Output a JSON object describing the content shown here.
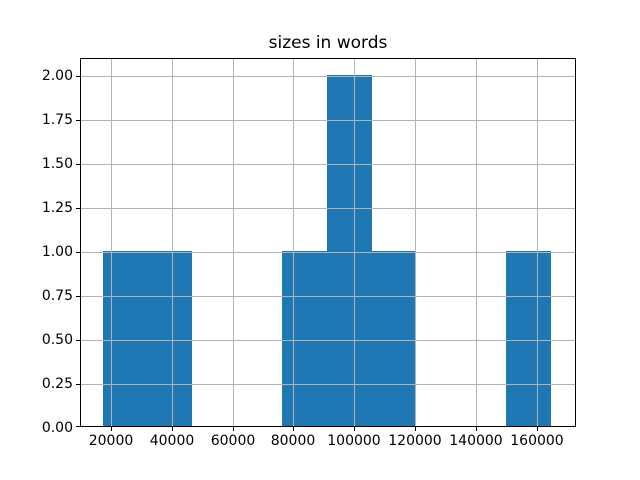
{
  "figure": {
    "background": "#ffffff"
  },
  "chart_data": {
    "type": "bar",
    "subtype": "histogram",
    "title": "sizes in words",
    "xlabel": "",
    "ylabel": "",
    "bin_edges": [
      17300,
      32030,
      46760,
      61490,
      76220,
      90950,
      105680,
      120410,
      135140,
      149870,
      164600
    ],
    "counts": [
      1,
      1,
      0,
      0,
      1,
      2,
      1,
      0,
      0,
      1
    ],
    "xlim": [
      9900,
      172800
    ],
    "ylim": [
      0,
      2.1
    ],
    "xticks": {
      "values": [
        20000,
        40000,
        60000,
        80000,
        100000,
        120000,
        140000,
        160000
      ],
      "labels": [
        "20000",
        "40000",
        "60000",
        "80000",
        "100000",
        "120000",
        "140000",
        "160000"
      ]
    },
    "yticks": {
      "values": [
        0,
        0.25,
        0.5,
        0.75,
        1.0,
        1.25,
        1.5,
        1.75,
        2.0
      ],
      "labels": [
        "0.00",
        "0.25",
        "0.50",
        "0.75",
        "1.00",
        "1.25",
        "1.50",
        "1.75",
        "2.00"
      ]
    },
    "grid": true,
    "grid_above_bars": true,
    "legend_position": "none",
    "bar_color": "#1f77b4",
    "grid_color": "#b4b4b4",
    "spine_color": "#000000",
    "text_color": "#000000"
  }
}
